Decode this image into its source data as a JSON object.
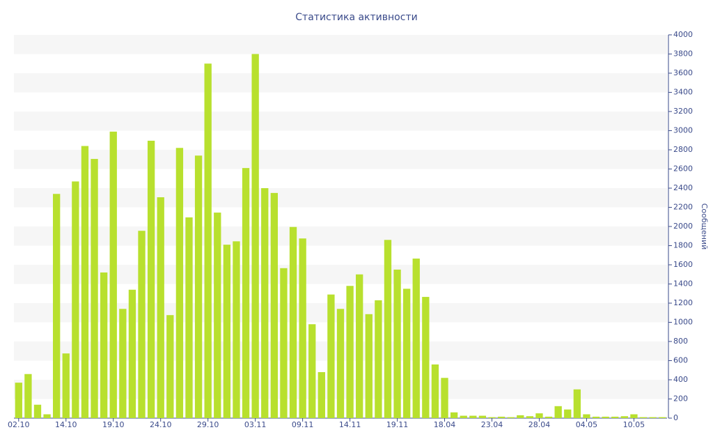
{
  "chart_data": {
    "type": "bar",
    "title": "Статистика активности",
    "y_label": "Сообщений",
    "categories": [
      "02.10",
      null,
      null,
      null,
      null,
      "14.10",
      null,
      null,
      null,
      null,
      "19.10",
      null,
      null,
      null,
      null,
      "24.10",
      null,
      null,
      null,
      null,
      "29.10",
      null,
      null,
      null,
      null,
      "03.11",
      null,
      null,
      null,
      null,
      "09.11",
      null,
      null,
      null,
      null,
      "14.11",
      null,
      null,
      null,
      null,
      "19.11",
      null,
      null,
      null,
      null,
      "18.04",
      null,
      null,
      null,
      null,
      "23.04",
      null,
      null,
      null,
      null,
      "28.04",
      null,
      null,
      null,
      null,
      "04.05",
      null,
      null,
      null,
      null,
      "10.05",
      null,
      null,
      null
    ],
    "values": [
      370,
      460,
      140,
      40,
      2340,
      675,
      2470,
      2840,
      2705,
      1520,
      2990,
      1140,
      1340,
      1955,
      2895,
      2305,
      1075,
      2820,
      2095,
      2740,
      3700,
      2145,
      1810,
      1845,
      2610,
      3800,
      2400,
      2350,
      1565,
      1995,
      1875,
      980,
      480,
      1290,
      1140,
      1380,
      1500,
      1085,
      1230,
      1860,
      1550,
      1350,
      1665,
      1265,
      560,
      420,
      60,
      25,
      25,
      25,
      10,
      15,
      10,
      30,
      20,
      50,
      15,
      125,
      90,
      300,
      40,
      15,
      15,
      15,
      20,
      40,
      10,
      10,
      10
    ],
    "color": "#b8e02e",
    "ylim": [
      0,
      4000
    ],
    "yticks": [
      0,
      200,
      400,
      600,
      800,
      1000,
      1200,
      1400,
      1600,
      1800,
      2000,
      2200,
      2400,
      2600,
      2800,
      3000,
      3200,
      3400,
      3600,
      3800,
      4000
    ],
    "y_axis_side": "right",
    "grid": true
  }
}
